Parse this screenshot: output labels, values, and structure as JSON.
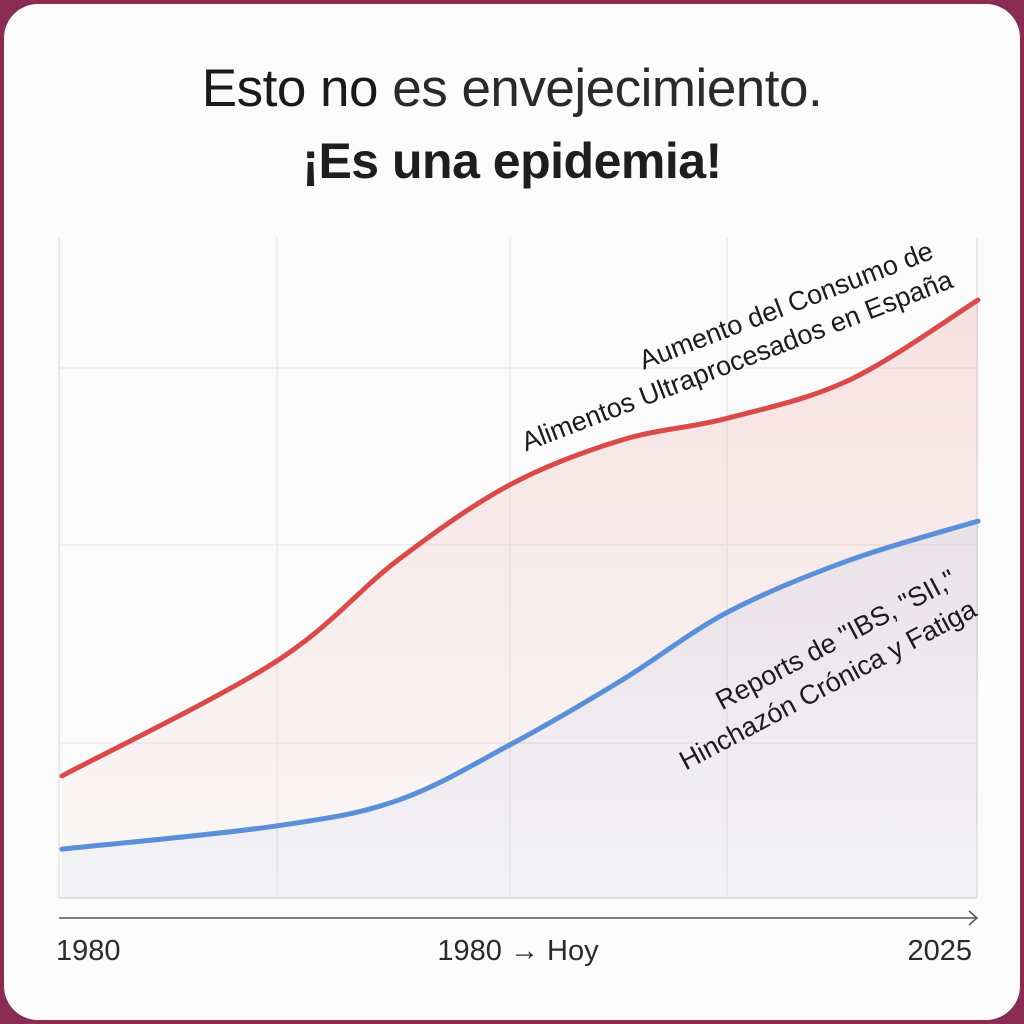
{
  "title": {
    "line1_strong": "Esto no",
    "line1_light": "es envejecimiento.",
    "line2": "¡Es una epidemia!"
  },
  "colors": {
    "frame": "#8b2c52",
    "red_series": "#d94b4b",
    "blue_series": "#5b8fd8"
  },
  "chart_data": {
    "type": "line",
    "title": "Esto no es envejecimiento. ¡Es una epidemia!",
    "xlabel": "1980 → Hoy",
    "ylabel": "",
    "x_tick_labels": [
      "1980",
      "1980 → Hoy",
      "2025"
    ],
    "xlim": [
      1980,
      2025
    ],
    "ylim": [
      0,
      100
    ],
    "grid": true,
    "x": [
      1980,
      1990.5,
      1996.5,
      2002,
      2007.5,
      2012.7,
      2018.7,
      2025
    ],
    "series": [
      {
        "name": "Aumento del Consumo de Alimentos Ultraprocesados en España",
        "label_lines": [
          "Aumento del Consumo de",
          "Alimentos Ultraprocesados en España"
        ],
        "color": "#d94b4b",
        "values": [
          18.5,
          35.8,
          51.2,
          62.6,
          69.4,
          72.7,
          78.5,
          90.6
        ]
      },
      {
        "name": "Reports de \"IBS, \"SII,\" Hinchazón Crónica y Fatiga",
        "label_lines": [
          "Reports de \"IBS, \"SII,\"",
          "Hinchazón Crónica y Fatiga"
        ],
        "color": "#5b8fd8",
        "values": [
          7.4,
          10.9,
          14.8,
          23.2,
          33.0,
          43.3,
          51.2,
          57.1
        ]
      }
    ]
  }
}
